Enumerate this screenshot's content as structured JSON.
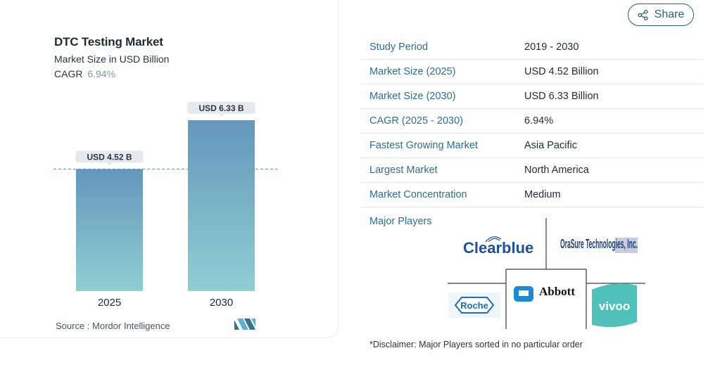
{
  "chart_data": {
    "type": "bar",
    "title": "DTC Testing Market",
    "subtitle": "Market Size in USD Billion",
    "cagr_label": "CAGR",
    "cagr_value": "6.94%",
    "categories": [
      "2025",
      "2030"
    ],
    "values": [
      4.52,
      6.33
    ],
    "data_labels": [
      "USD 4.52 B",
      "USD 6.33 B"
    ],
    "ylim": [
      0,
      7.5
    ],
    "reference_line_value": 4.52,
    "colors": {
      "bar_top": "#6497bc",
      "bar_bottom": "#8ecfd2",
      "label_bg": "#e6eaee",
      "ref_line": "#5b87a3"
    }
  },
  "source": {
    "label": "Source :",
    "name": "Mordor Intelligence"
  },
  "share": {
    "label": "Share",
    "icon": "share-icon"
  },
  "facts": [
    {
      "key": "Study Period",
      "value": "2019 - 2030"
    },
    {
      "key": "Market Size (2025)",
      "value": "USD 4.52 Billion"
    },
    {
      "key": "Market Size (2030)",
      "value": "USD 6.33 Billion"
    },
    {
      "key": "CAGR (2025 - 2030)",
      "value": "6.94%"
    },
    {
      "key": "Fastest Growing Market",
      "value": "Asia Pacific"
    },
    {
      "key": "Largest Market",
      "value": "North America"
    },
    {
      "key": "Market Concentration",
      "value": "Medium"
    }
  ],
  "major_players": {
    "label": "Major Players",
    "logos": [
      "Clearblue",
      "OraSure Technologies, Inc.",
      "Roche",
      "Abbott",
      "vivoo"
    ]
  },
  "disclaimer": "*Disclaimer: Major Players sorted in no particular order"
}
